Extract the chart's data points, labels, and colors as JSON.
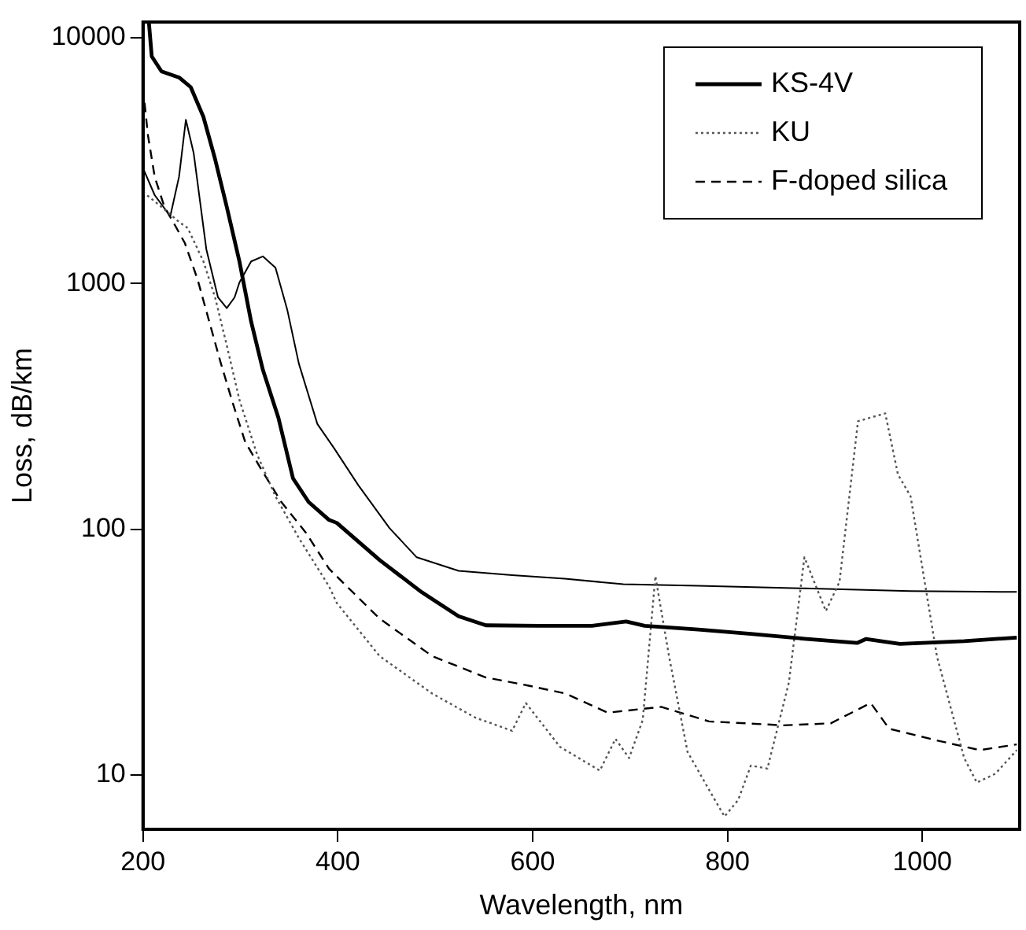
{
  "chart_data": {
    "type": "line",
    "xlabel": "Wavelength, nm",
    "ylabel": "Loss, dB/km",
    "xlim": [
      200,
      1100
    ],
    "xticks": [
      200,
      400,
      600,
      800,
      1000
    ],
    "ylim": [
      6,
      11600
    ],
    "yticks": [
      10,
      100,
      1000,
      10000
    ],
    "log": "y",
    "grid": false,
    "legend": "top right",
    "marker": "none",
    "series": [
      {
        "name": "KS-4V",
        "color": "#000000",
        "line_style": "solid",
        "x": [
          206,
          209,
          219,
          237,
          249,
          262,
          274,
          286,
          299,
          311,
          323,
          339,
          354,
          370,
          391,
          399,
          443,
          486,
          524,
          552,
          606,
          661,
          696,
          715,
          770,
          824,
          879,
          933,
          942,
          977,
          1043,
          1097
        ],
        "values": [
          11600,
          8400,
          7300,
          6900,
          6300,
          4770,
          3210,
          2050,
          1230,
          700,
          446,
          284,
          161,
          129,
          109,
          106,
          74.8,
          55.4,
          44.2,
          40.6,
          40.4,
          40.4,
          42.1,
          40.4,
          39,
          37.5,
          35.8,
          34.4,
          35.7,
          34.1,
          35,
          36.2
        ]
      },
      {
        "name": "KU",
        "color": "#555555",
        "line_style": "dotted",
        "x": [
          200,
          219,
          237,
          246,
          262,
          274,
          286,
          299,
          317,
          336,
          360,
          391,
          399,
          443,
          497,
          541,
          579,
          593,
          628,
          669,
          685,
          699,
          713,
          726,
          740,
          759,
          781,
          797,
          811,
          824,
          841,
          863,
          879,
          901,
          915,
          934,
          962,
          975,
          988,
          1015,
          1043,
          1056,
          1075,
          1097
        ],
        "values": [
          2360,
          2050,
          1780,
          1680,
          1230,
          878,
          560,
          336,
          202,
          136,
          92,
          58.5,
          50,
          30.4,
          21.4,
          17.1,
          15.1,
          19.6,
          13,
          10.4,
          14,
          11.7,
          16.7,
          64.4,
          30.4,
          12.4,
          8.7,
          6.76,
          7.9,
          10.9,
          10.6,
          23.7,
          76.8,
          46.4,
          61,
          275,
          296,
          167,
          136,
          30.4,
          11.7,
          9.3,
          10.1,
          12.6
        ]
      },
      {
        "name": "F-doped silica",
        "color": "#000000",
        "line_style": "dashed",
        "x": [
          200,
          205,
          212,
          222,
          231,
          243,
          256,
          268,
          280,
          293,
          305,
          323,
          342,
          367,
          391,
          404,
          443,
          497,
          552,
          595,
          634,
          677,
          732,
          781,
          857,
          906,
          947,
          966,
          1015,
          1059,
          1097
        ],
        "values": [
          6300,
          4030,
          2720,
          2050,
          1780,
          1460,
          1040,
          700,
          472,
          318,
          226,
          171,
          129,
          97,
          69,
          61.3,
          43.2,
          30.4,
          24.9,
          23.1,
          21.4,
          17.9,
          18.9,
          16.5,
          15.9,
          16.2,
          19.6,
          15.4,
          13.8,
          12.6,
          13.3
        ]
      },
      {
        "color": "#000000",
        "line_style": "solid",
        "x": [
          200,
          212,
          228,
          237,
          244,
          252,
          265,
          277,
          286,
          294,
          299,
          311,
          323,
          336,
          348,
          360,
          379,
          396,
          421,
          453,
          481,
          524,
          579,
          633,
          693,
          770,
          879,
          988,
          1097
        ],
        "values": [
          2950,
          2290,
          1880,
          2720,
          4640,
          3400,
          1380,
          878,
          794,
          878,
          1010,
          1230,
          1290,
          1160,
          785,
          472,
          268,
          214,
          151,
          101,
          76.8,
          67.7,
          65,
          62.8,
          59.7,
          58.8,
          57.4,
          56,
          55.5
        ]
      }
    ]
  }
}
